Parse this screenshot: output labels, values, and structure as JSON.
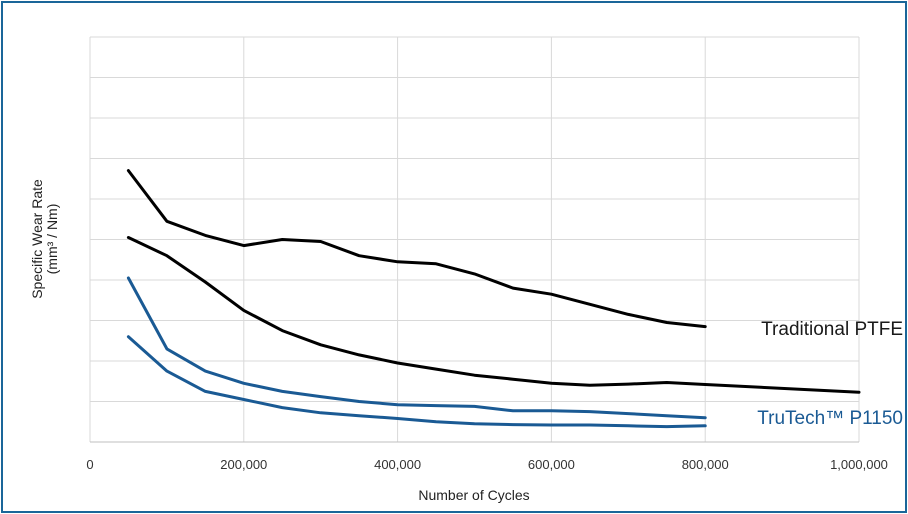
{
  "chart_data": {
    "type": "line",
    "title": "",
    "xlabel": "Number of Cycles",
    "ylabel_line1": "Specific Wear Rate",
    "ylabel_line2": "(mm³ / Nm)",
    "xlim": [
      0,
      1000000
    ],
    "ylim": [
      0,
      10
    ],
    "x_ticks": [
      0,
      200000,
      400000,
      600000,
      800000,
      1000000
    ],
    "x_tick_labels": [
      "0",
      "200,000",
      "400,000",
      "600,000",
      "800,000",
      "1,000,000"
    ],
    "y_ticks_labeled": false,
    "grid": true,
    "series_labels": [
      {
        "text": "Traditional PTFE",
        "color": "#1a1a1a"
      },
      {
        "text": "TruTech™ P1150",
        "color": "#1a5a94"
      }
    ],
    "series": [
      {
        "group": "Traditional PTFE",
        "color": "#000000",
        "x": [
          50000,
          100000,
          150000,
          200000,
          250000,
          300000,
          350000,
          400000,
          450000,
          500000,
          550000,
          600000,
          650000,
          700000,
          750000,
          800000
        ],
        "y": [
          6.7,
          5.45,
          5.1,
          4.85,
          5.0,
          4.95,
          4.6,
          4.45,
          4.4,
          4.15,
          3.8,
          3.65,
          3.4,
          3.15,
          2.95,
          2.85
        ]
      },
      {
        "group": "Traditional PTFE",
        "color": "#000000",
        "x": [
          50000,
          100000,
          150000,
          200000,
          250000,
          300000,
          350000,
          400000,
          450000,
          500000,
          550000,
          600000,
          650000,
          700000,
          750000,
          800000,
          1000000
        ],
        "y": [
          5.05,
          4.6,
          3.95,
          3.25,
          2.75,
          2.4,
          2.15,
          1.95,
          1.8,
          1.65,
          1.55,
          1.45,
          1.4,
          1.43,
          1.47,
          1.42,
          1.23
        ]
      },
      {
        "group": "TruTech™ P1150",
        "color": "#1a5a94",
        "x": [
          50000,
          100000,
          150000,
          200000,
          250000,
          300000,
          350000,
          400000,
          450000,
          500000,
          550000,
          600000,
          650000,
          700000,
          750000,
          800000
        ],
        "y": [
          4.05,
          2.3,
          1.75,
          1.45,
          1.25,
          1.12,
          1.0,
          0.92,
          0.9,
          0.88,
          0.77,
          0.77,
          0.75,
          0.7,
          0.65,
          0.6
        ]
      },
      {
        "group": "TruTech™ P1150",
        "color": "#1a5a94",
        "x": [
          50000,
          100000,
          150000,
          200000,
          250000,
          300000,
          350000,
          400000,
          450000,
          500000,
          550000,
          600000,
          650000,
          700000,
          750000,
          800000
        ],
        "y": [
          2.6,
          1.75,
          1.25,
          1.05,
          0.85,
          0.72,
          0.65,
          0.58,
          0.5,
          0.45,
          0.43,
          0.42,
          0.42,
          0.4,
          0.38,
          0.4
        ]
      }
    ]
  }
}
